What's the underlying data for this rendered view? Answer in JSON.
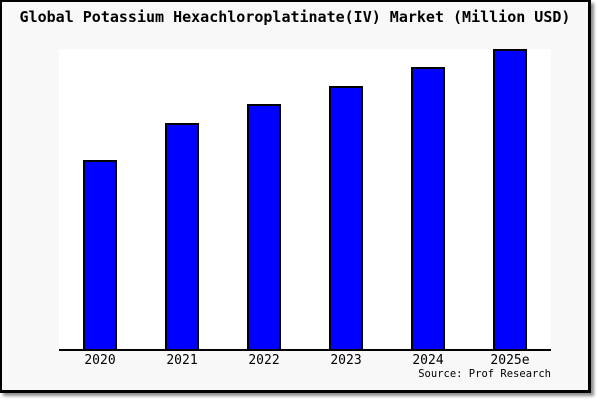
{
  "title": "Global Potassium Hexachloroplatinate(IV) Market (Million USD)",
  "source_credit": "Source: Prof Research",
  "colors": {
    "canvas_background": "#f8f8f8",
    "plot_background": "#ffffff",
    "bar_fill": "#0000ff",
    "bar_border": "#000000",
    "axis": "#000000",
    "text": "#000000"
  },
  "chart_data": {
    "type": "bar",
    "title": "Global Potassium Hexachloroplatinate(IV) Market (Million USD)",
    "categories": [
      "2020",
      "2021",
      "2022",
      "2023",
      "2024",
      "2025e"
    ],
    "values": [
      63,
      75.3,
      81.7,
      87.7,
      94,
      100
    ],
    "value_basis": "relative (no y-axis scale shown; max bar = 100)",
    "xlabel": "",
    "ylabel": "",
    "ylim": [
      0,
      100.7
    ],
    "grid": false,
    "legend": "none",
    "y_axis_visible": false,
    "bar_color": "#0000ff",
    "bar_border_color": "#000000"
  }
}
